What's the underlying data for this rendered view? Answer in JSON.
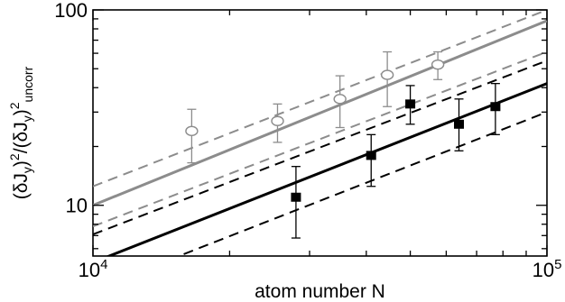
{
  "chart_data": {
    "type": "scatter",
    "title": "",
    "xlabel": "atom number N",
    "ylabel_parts": [
      "(δJ",
      "y",
      ")",
      "2",
      "/(δJ",
      "y",
      ")",
      "2",
      "uncorr"
    ],
    "x_scale": "log",
    "y_scale": "log",
    "xlim": [
      10000,
      100000
    ],
    "ylim": [
      5.5,
      100
    ],
    "x_ticks": [
      {
        "value": 10000,
        "base": "10",
        "exp": "4"
      },
      {
        "value": 100000,
        "base": "10",
        "exp": "5"
      }
    ],
    "y_ticks": [
      {
        "value": 10,
        "label": "10"
      },
      {
        "value": 100,
        "label": "100"
      }
    ],
    "colors": {
      "gray": "#8c8c8c",
      "black": "#000000"
    },
    "series": [
      {
        "marker": "open-ellipse",
        "color": "gray",
        "points": [
          {
            "x": 16500,
            "y": 24,
            "ylow": 16.5,
            "yhigh": 31
          },
          {
            "x": 25500,
            "y": 27,
            "ylow": 21,
            "yhigh": 33
          },
          {
            "x": 35000,
            "y": 35,
            "ylow": 25,
            "yhigh": 46
          },
          {
            "x": 44500,
            "y": 46.5,
            "ylow": 32,
            "yhigh": 61
          },
          {
            "x": 57500,
            "y": 52.5,
            "ylow": 44,
            "yhigh": 61
          }
        ]
      },
      {
        "marker": "filled-square",
        "color": "black",
        "points": [
          {
            "x": 28000,
            "y": 11,
            "ylow": 6.8,
            "yhigh": 15.8
          },
          {
            "x": 41000,
            "y": 18,
            "ylow": 12.5,
            "yhigh": 23
          },
          {
            "x": 50000,
            "y": 33,
            "ylow": 26,
            "yhigh": 41
          },
          {
            "x": 64000,
            "y": 26,
            "ylow": 19,
            "yhigh": 35
          },
          {
            "x": 77000,
            "y": 32,
            "ylow": 23,
            "yhigh": 42
          }
        ]
      }
    ],
    "lines": [
      {
        "style": "solid",
        "color": "gray",
        "y_at_xmin": 10,
        "y_at_xmax": 88
      },
      {
        "style": "dashed",
        "color": "gray",
        "y_at_xmin": 12.5,
        "y_at_xmax": 100
      },
      {
        "style": "dashed",
        "color": "gray",
        "y_at_xmin": 7.8,
        "y_at_xmax": 61
      },
      {
        "style": "solid",
        "color": "black",
        "y_at_xmin": 5.1,
        "y_at_xmax": 42
      },
      {
        "style": "dashed",
        "color": "black",
        "y_at_xmin": 7.1,
        "y_at_xmax": 55
      },
      {
        "style": "dashed",
        "color": "black",
        "y_at_xmin": 3.7,
        "y_at_xmax": 30
      }
    ]
  }
}
